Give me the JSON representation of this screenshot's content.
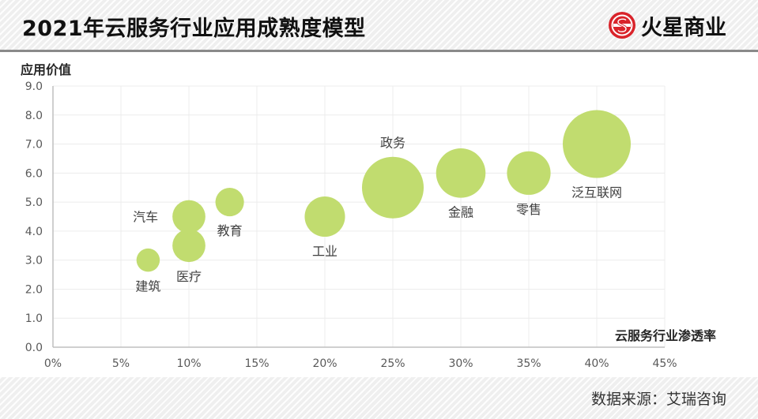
{
  "header": {
    "title": "2021年云服务行业应用成熟度模型",
    "brand_name": "火星商业",
    "brand_logo_icon": "mars-business-logo-icon"
  },
  "footer": {
    "source": "数据来源：艾瑞咨询"
  },
  "colors": {
    "bubble": "#c1dc6f",
    "axis": "#bfbfbf",
    "grid": "#ececec",
    "brand_red": "#d9232a"
  },
  "chart_data": {
    "type": "scatter",
    "subtype": "bubble",
    "title": "2021年云服务行业应用成熟度模型",
    "xlabel": "云服务行业渗透率",
    "ylabel": "应用价值",
    "xlim": [
      0,
      45
    ],
    "ylim": [
      0,
      9
    ],
    "x_ticks": [
      "0%",
      "5%",
      "10%",
      "15%",
      "20%",
      "25%",
      "30%",
      "35%",
      "40%",
      "45%"
    ],
    "y_ticks": [
      "0.0",
      "1.0",
      "2.0",
      "3.0",
      "4.0",
      "5.0",
      "6.0",
      "7.0",
      "8.0",
      "9.0"
    ],
    "grid": true,
    "points": [
      {
        "label": "建筑",
        "x": 7,
        "y": 3.0,
        "size": 1,
        "label_pos": "below"
      },
      {
        "label": "医疗",
        "x": 10,
        "y": 3.5,
        "size": 2,
        "label_pos": "below"
      },
      {
        "label": "汽车",
        "x": 10,
        "y": 4.5,
        "size": 2,
        "label_pos": "left"
      },
      {
        "label": "教育",
        "x": 13,
        "y": 5.0,
        "size": 1.5,
        "label_pos": "below"
      },
      {
        "label": "工业",
        "x": 20,
        "y": 4.5,
        "size": 3,
        "label_pos": "below"
      },
      {
        "label": "政务",
        "x": 25,
        "y": 5.5,
        "size": 7,
        "label_pos": "above"
      },
      {
        "label": "金融",
        "x": 30,
        "y": 6.0,
        "size": 4.5,
        "label_pos": "below"
      },
      {
        "label": "零售",
        "x": 35,
        "y": 6.0,
        "size": 3.5,
        "label_pos": "below"
      },
      {
        "label": "泛互联网",
        "x": 40,
        "y": 7.0,
        "size": 8.5,
        "label_pos": "below"
      }
    ]
  }
}
